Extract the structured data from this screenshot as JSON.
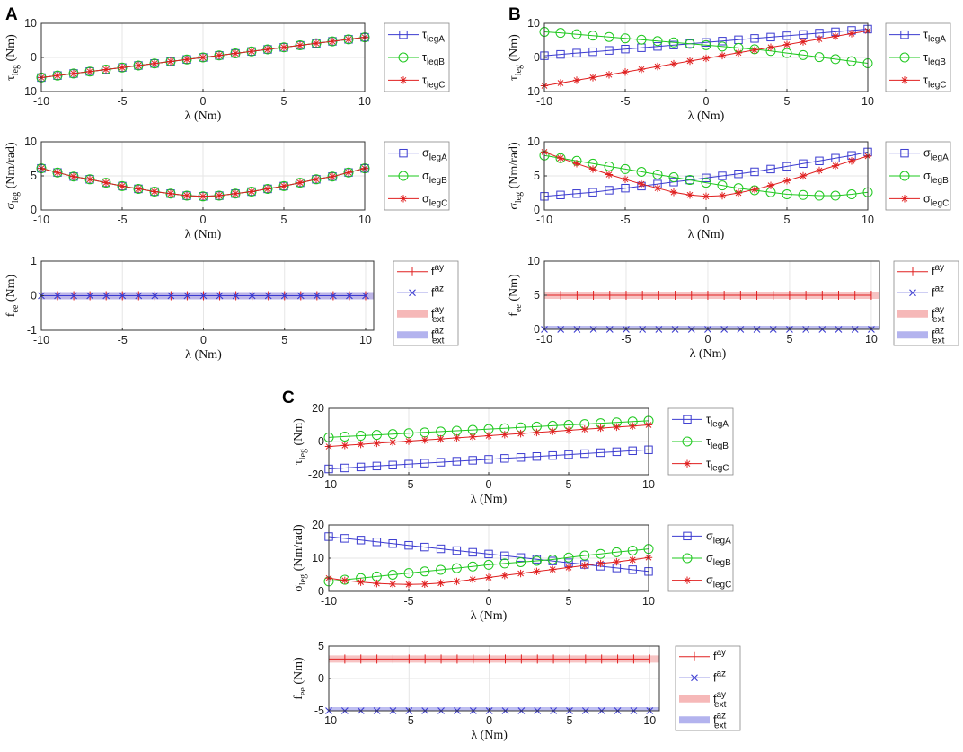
{
  "panels": [
    {
      "letter": "A"
    },
    {
      "letter": "B"
    },
    {
      "letter": "C"
    }
  ],
  "colors": {
    "blue": "#3b3bd0",
    "green": "#1ec81e",
    "red": "#e02020",
    "band_red": "#f6b8b8",
    "band_blue": "#b3b3ee",
    "grid": "#e6e6e6",
    "axis": "#333333"
  },
  "text": {
    "x_label": "λ (Nm)",
    "tau_label": "τ_leg (Nm)",
    "sigma_label": "σ_leg (Nm/rad)",
    "f_label": "f_ee (Nm)",
    "legend_tau": [
      "τ_legA",
      "τ_legB",
      "τ_legC"
    ],
    "legend_sigma": [
      "σ_legA",
      "σ_legB",
      "σ_legC"
    ],
    "legend_f": [
      "f^ay",
      "f^az",
      "f_ext^ay",
      "f_ext^az"
    ]
  },
  "chart_data": [
    {
      "panel": "A",
      "type": "line",
      "ylabel": "τ_leg (Nm)",
      "xlabel": "λ (Nm)",
      "xlim": [
        -10,
        10
      ],
      "ylim": [
        -10,
        10
      ],
      "yticks": [
        -10,
        0,
        10
      ],
      "xticks": [
        -10,
        -5,
        0,
        5,
        10
      ],
      "xmax_plot": 10,
      "series": [
        {
          "name": "τ_legA",
          "color": "blue",
          "marker": "square",
          "x0": -10,
          "y0": -5.9,
          "x1": 10,
          "y1": 5.9
        },
        {
          "name": "τ_legB",
          "color": "green",
          "marker": "circle",
          "x0": -10,
          "y0": -5.9,
          "x1": 10,
          "y1": 5.9
        },
        {
          "name": "τ_legC",
          "color": "red",
          "marker": "star",
          "x0": -10,
          "y0": -5.9,
          "x1": 10,
          "y1": 5.9
        }
      ]
    },
    {
      "panel": "A",
      "type": "line",
      "ylabel": "σ_leg (Nm/rad)",
      "xlabel": "λ (Nm)",
      "xlim": [
        -10,
        10
      ],
      "ylim": [
        0,
        10
      ],
      "yticks": [
        0,
        5,
        10
      ],
      "xticks": [
        -10,
        -5,
        0,
        5,
        10
      ],
      "xmax_plot": 10,
      "series": [
        {
          "name": "σ_legA",
          "color": "blue",
          "marker": "square",
          "x": [
            -10,
            -9,
            -8,
            -7,
            -6,
            -5,
            -4,
            -3,
            -2,
            -1,
            0,
            1,
            2,
            3,
            4,
            5,
            6,
            7,
            8,
            9,
            10
          ],
          "y": [
            6.1,
            5.5,
            4.9,
            4.5,
            4.0,
            3.5,
            3.1,
            2.7,
            2.4,
            2.1,
            2.0,
            2.1,
            2.4,
            2.7,
            3.1,
            3.5,
            4.0,
            4.5,
            4.9,
            5.5,
            6.1
          ]
        },
        {
          "name": "σ_legB",
          "color": "green",
          "marker": "circle",
          "x": [
            -10,
            -9,
            -8,
            -7,
            -6,
            -5,
            -4,
            -3,
            -2,
            -1,
            0,
            1,
            2,
            3,
            4,
            5,
            6,
            7,
            8,
            9,
            10
          ],
          "y": [
            6.1,
            5.5,
            4.9,
            4.5,
            4.0,
            3.5,
            3.1,
            2.7,
            2.4,
            2.1,
            2.0,
            2.1,
            2.4,
            2.7,
            3.1,
            3.5,
            4.0,
            4.5,
            4.9,
            5.5,
            6.1
          ]
        },
        {
          "name": "σ_legC",
          "color": "red",
          "marker": "star",
          "x": [
            -10,
            -9,
            -8,
            -7,
            -6,
            -5,
            -4,
            -3,
            -2,
            -1,
            0,
            1,
            2,
            3,
            4,
            5,
            6,
            7,
            8,
            9,
            10
          ],
          "y": [
            6.1,
            5.5,
            4.9,
            4.5,
            4.0,
            3.5,
            3.1,
            2.7,
            2.4,
            2.1,
            2.0,
            2.1,
            2.4,
            2.7,
            3.1,
            3.5,
            4.0,
            4.5,
            4.9,
            5.5,
            6.1
          ]
        }
      ]
    },
    {
      "panel": "A",
      "type": "line",
      "ylabel": "f_ee (Nm)",
      "xlabel": "λ (Nm)",
      "xlim": [
        -10,
        10
      ],
      "ylim": [
        -1,
        1
      ],
      "yticks": [
        -1,
        0,
        1
      ],
      "xticks": [
        -10,
        -5,
        0,
        5,
        10
      ],
      "xmax_plot": 10.5,
      "series": [
        {
          "name": "f^ay",
          "color": "red",
          "marker": "plus",
          "x0": -10,
          "y0": 0,
          "x1": 10,
          "y1": 0
        },
        {
          "name": "f^az",
          "color": "blue",
          "marker": "x",
          "x0": -10,
          "y0": 0,
          "x1": 10,
          "y1": 0
        }
      ],
      "bands": [
        {
          "name": "f_ext^ay",
          "color": "band_red",
          "y": 0
        },
        {
          "name": "f_ext^az",
          "color": "band_blue",
          "y": 0
        }
      ]
    },
    {
      "panel": "B",
      "type": "line",
      "ylabel": "τ_leg (Nm)",
      "xlabel": "λ (Nm)",
      "xlim": [
        -10,
        10
      ],
      "ylim": [
        -10,
        10
      ],
      "yticks": [
        -10,
        0,
        10
      ],
      "xticks": [
        -10,
        -5,
        0,
        5,
        10
      ],
      "xmax_plot": 10,
      "series": [
        {
          "name": "τ_legA",
          "color": "blue",
          "marker": "square",
          "x0": -10,
          "y0": 0.5,
          "x1": 10,
          "y1": 8.3
        },
        {
          "name": "τ_legB",
          "color": "green",
          "marker": "circle",
          "x": [
            -10,
            -9,
            -8,
            -7,
            -6,
            -5,
            -4,
            -3,
            -2,
            -1,
            0,
            1,
            2,
            3,
            4,
            5,
            6,
            7,
            8,
            9,
            10
          ],
          "y": [
            7.5,
            7.2,
            6.8,
            6.4,
            6.0,
            5.6,
            5.2,
            4.8,
            4.4,
            4.0,
            3.6,
            3.2,
            2.8,
            2.4,
            1.9,
            1.3,
            0.7,
            0.1,
            -0.5,
            -1.1,
            -1.7
          ]
        },
        {
          "name": "τ_legC",
          "color": "red",
          "marker": "star",
          "x0": -10,
          "y0": -8.3,
          "x1": 10,
          "y1": 7.8
        }
      ]
    },
    {
      "panel": "B",
      "type": "line",
      "ylabel": "σ_leg (Nm/rad)",
      "xlabel": "λ (Nm)",
      "xlim": [
        -10,
        10
      ],
      "ylim": [
        0,
        10
      ],
      "yticks": [
        0,
        5,
        10
      ],
      "xticks": [
        -10,
        -5,
        0,
        5,
        10
      ],
      "xmax_plot": 10,
      "series": [
        {
          "name": "σ_legA",
          "color": "blue",
          "marker": "square",
          "x": [
            -10,
            -9,
            -8,
            -7,
            -6,
            -5,
            -4,
            -3,
            -2,
            -1,
            0,
            1,
            2,
            3,
            4,
            5,
            6,
            7,
            8,
            9,
            10
          ],
          "y": [
            2.0,
            2.2,
            2.4,
            2.6,
            2.9,
            3.2,
            3.5,
            3.8,
            4.1,
            4.4,
            4.7,
            5.0,
            5.3,
            5.6,
            6.0,
            6.4,
            6.8,
            7.2,
            7.6,
            8.0,
            8.5
          ]
        },
        {
          "name": "σ_legB",
          "color": "green",
          "marker": "circle",
          "x": [
            -10,
            -9,
            -8,
            -7,
            -6,
            -5,
            -4,
            -3,
            -2,
            -1,
            0,
            1,
            2,
            3,
            4,
            5,
            6,
            7,
            8,
            9,
            10
          ],
          "y": [
            8.0,
            7.6,
            7.2,
            6.8,
            6.4,
            6.0,
            5.6,
            5.2,
            4.8,
            4.4,
            4.0,
            3.6,
            3.2,
            2.9,
            2.6,
            2.3,
            2.2,
            2.1,
            2.1,
            2.3,
            2.6
          ]
        },
        {
          "name": "σ_legC",
          "color": "red",
          "marker": "star",
          "x": [
            -10,
            -9,
            -8,
            -7,
            -6,
            -5,
            -4,
            -3,
            -2,
            -1,
            0,
            1,
            2,
            3,
            4,
            5,
            6,
            7,
            8,
            9,
            10
          ],
          "y": [
            8.5,
            7.6,
            6.8,
            6.0,
            5.2,
            4.5,
            3.8,
            3.2,
            2.6,
            2.2,
            2.0,
            2.1,
            2.5,
            3.0,
            3.6,
            4.3,
            5.0,
            5.8,
            6.5,
            7.2,
            7.9
          ]
        }
      ]
    },
    {
      "panel": "B",
      "type": "line",
      "ylabel": "f_ee (Nm)",
      "xlabel": "λ (Nm)",
      "xlim": [
        -10,
        10
      ],
      "ylim": [
        0,
        10
      ],
      "yticks": [
        0,
        5,
        10
      ],
      "xticks": [
        -10,
        -5,
        0,
        5,
        10
      ],
      "xmax_plot": 10.5,
      "series": [
        {
          "name": "f^ay",
          "color": "red",
          "marker": "plus",
          "x0": -10,
          "y0": 5,
          "x1": 10,
          "y1": 5
        },
        {
          "name": "f^az",
          "color": "blue",
          "marker": "x",
          "x0": -10,
          "y0": 0,
          "x1": 10,
          "y1": 0
        }
      ],
      "bands": [
        {
          "name": "f_ext^ay",
          "color": "band_red",
          "y": 5
        },
        {
          "name": "f_ext^az",
          "color": "band_blue",
          "y": 0
        }
      ]
    },
    {
      "panel": "C",
      "type": "line",
      "ylabel": "τ_leg (Nm)",
      "xlabel": "λ (Nm)",
      "xlim": [
        -10,
        10
      ],
      "ylim": [
        -20,
        20
      ],
      "yticks": [
        -20,
        0,
        20
      ],
      "xticks": [
        -10,
        -5,
        0,
        5,
        10
      ],
      "xmax_plot": 10,
      "series": [
        {
          "name": "τ_legA",
          "color": "blue",
          "marker": "square",
          "x0": -10,
          "y0": -16.5,
          "x1": 10,
          "y1": -5.0
        },
        {
          "name": "τ_legB",
          "color": "green",
          "marker": "circle",
          "x0": -10,
          "y0": 2.5,
          "x1": 10,
          "y1": 12.5
        },
        {
          "name": "τ_legC",
          "color": "red",
          "marker": "star",
          "x0": -10,
          "y0": -3.0,
          "x1": 10,
          "y1": 10.0
        }
      ]
    },
    {
      "panel": "C",
      "type": "line",
      "ylabel": "σ_leg (Nm/rad)",
      "xlabel": "λ (Nm)",
      "xlim": [
        -10,
        10
      ],
      "ylim": [
        0,
        20
      ],
      "yticks": [
        0,
        10,
        20
      ],
      "xticks": [
        -10,
        -5,
        0,
        5,
        10
      ],
      "xmax_plot": 10,
      "series": [
        {
          "name": "σ_legA",
          "color": "blue",
          "marker": "square",
          "x0": -10,
          "y0": 16.5,
          "x1": 10,
          "y1": 6.0
        },
        {
          "name": "σ_legB",
          "color": "green",
          "marker": "circle",
          "x": [
            -10,
            -9,
            -8,
            -7,
            -6,
            -5,
            -4,
            -3,
            -2,
            -1,
            0,
            1,
            2,
            3,
            4,
            5,
            6,
            7,
            8,
            9,
            10
          ],
          "y": [
            3.0,
            3.5,
            4.0,
            4.5,
            5.0,
            5.5,
            6.0,
            6.5,
            7.0,
            7.5,
            8.0,
            8.4,
            8.8,
            9.2,
            9.6,
            10.2,
            10.8,
            11.3,
            11.8,
            12.3,
            12.8
          ]
        },
        {
          "name": "σ_legC",
          "color": "red",
          "marker": "star",
          "x": [
            -10,
            -9,
            -8,
            -7,
            -6,
            -5,
            -4,
            -3,
            -2,
            -1,
            0,
            1,
            2,
            3,
            4,
            5,
            6,
            7,
            8,
            9,
            10
          ],
          "y": [
            4.0,
            3.3,
            2.8,
            2.4,
            2.2,
            2.1,
            2.2,
            2.5,
            3.0,
            3.6,
            4.2,
            4.8,
            5.4,
            6.0,
            6.6,
            7.2,
            7.8,
            8.4,
            8.9,
            9.5,
            10.2
          ]
        }
      ]
    },
    {
      "panel": "C",
      "type": "line",
      "ylabel": "f_ee (Nm)",
      "xlabel": "λ (Nm)",
      "xlim": [
        -10,
        10
      ],
      "ylim": [
        -5,
        5
      ],
      "yticks": [
        -5,
        0,
        5
      ],
      "xticks": [
        -10,
        -5,
        0,
        5,
        10
      ],
      "xmax_plot": 10.6,
      "series": [
        {
          "name": "f^ay",
          "color": "red",
          "marker": "plus",
          "x0": -10,
          "y0": 3,
          "x1": 10,
          "y1": 3
        },
        {
          "name": "f^az",
          "color": "blue",
          "marker": "x",
          "x0": -10,
          "y0": -5,
          "x1": 10,
          "y1": -5
        }
      ],
      "bands": [
        {
          "name": "f_ext^ay",
          "color": "band_red",
          "y": 3
        },
        {
          "name": "f_ext^az",
          "color": "band_blue",
          "y": -5
        }
      ]
    }
  ]
}
